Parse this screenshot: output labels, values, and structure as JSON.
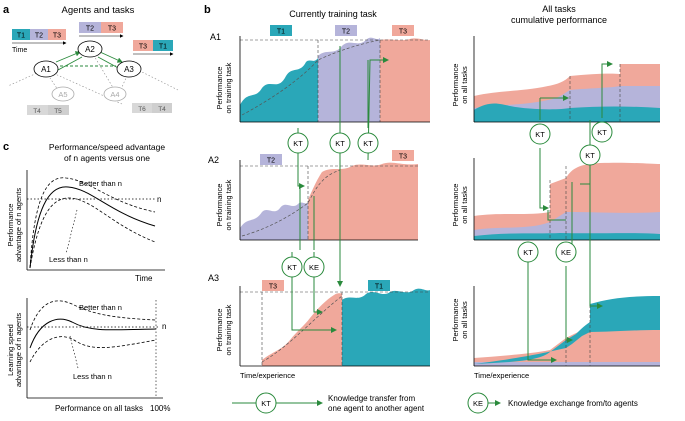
{
  "panel_a": {
    "letter": "a",
    "title": "Agents and tasks",
    "time_label": "Time",
    "task_seq_a1": [
      "T1",
      "T2",
      "T3"
    ],
    "task_seq_a2": [
      "T2",
      "T3"
    ],
    "task_seq_a3": [
      "T3",
      "T1"
    ],
    "agents": [
      "A1",
      "A2",
      "A3",
      "A4",
      "A5"
    ],
    "inactive_tasks_a5": [
      "T4",
      "T5"
    ],
    "inactive_tasks_a4": [
      "T6",
      "T4"
    ]
  },
  "panel_b": {
    "letter": "b",
    "col1_title": "Currently training task",
    "col2_title_line1": "All tasks",
    "col2_title_line2": "cumulative performance",
    "row_labels": [
      "A1",
      "A2",
      "A3"
    ],
    "ylabel_training": [
      "Performance",
      "on training task"
    ],
    "ylabel_all": [
      "Performance",
      "on all tasks"
    ],
    "xlabel": "Time/experience",
    "row1_tasks": [
      "T1",
      "T2",
      "T3"
    ],
    "row2_tasks": [
      "T2",
      "T3"
    ],
    "row3_tasks": [
      "T3",
      "T1"
    ],
    "kt": "KT",
    "ke": "KE"
  },
  "panel_c": {
    "letter": "c",
    "title_line1": "Performance/speed advantage",
    "title_line2": "of n agents versus one",
    "top_ylabel": [
      "Performance",
      "advantage of n agents"
    ],
    "top_xlabel": "Time",
    "bottom_ylabel": [
      "Learning speed",
      "advantage of n agents"
    ],
    "bottom_xlabel": "Performance on all tasks",
    "better": "Better than n",
    "less": "Less than n",
    "n": "n",
    "pct": "100%"
  },
  "legend": {
    "kt_icon": "KT",
    "kt_text_line1": "Knowledge transfer from",
    "kt_text_line2": "one agent to another agent",
    "ke_icon": "KE",
    "ke_text": "Knowledge exchange from/to agents"
  },
  "colors": {
    "teal": "#2aa7b8",
    "lavender": "#b5b4da",
    "salmon": "#f0a89b",
    "green": "#2a8a3c",
    "gray": "#9a9a9a"
  }
}
